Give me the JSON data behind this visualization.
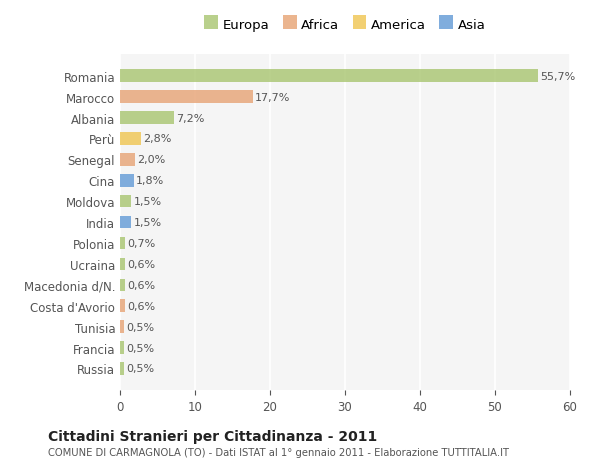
{
  "countries": [
    "Romania",
    "Marocco",
    "Albania",
    "Perù",
    "Senegal",
    "Cina",
    "Moldova",
    "India",
    "Polonia",
    "Ucraina",
    "Macedonia d/N.",
    "Costa d'Avorio",
    "Tunisia",
    "Francia",
    "Russia"
  ],
  "values": [
    55.7,
    17.7,
    7.2,
    2.8,
    2.0,
    1.8,
    1.5,
    1.5,
    0.7,
    0.6,
    0.6,
    0.6,
    0.5,
    0.5,
    0.5
  ],
  "labels": [
    "55,7%",
    "17,7%",
    "7,2%",
    "2,8%",
    "2,0%",
    "1,8%",
    "1,5%",
    "1,5%",
    "0,7%",
    "0,6%",
    "0,6%",
    "0,6%",
    "0,5%",
    "0,5%",
    "0,5%"
  ],
  "continents": [
    "Europa",
    "Africa",
    "Europa",
    "America",
    "Africa",
    "Asia",
    "Europa",
    "Asia",
    "Europa",
    "Europa",
    "Europa",
    "Africa",
    "Africa",
    "Europa",
    "Europa"
  ],
  "colors": {
    "Europa": "#adc878",
    "Africa": "#e8a87c",
    "America": "#f0c85a",
    "Asia": "#6a9fd8"
  },
  "legend_order": [
    "Europa",
    "Africa",
    "America",
    "Asia"
  ],
  "title": "Cittadini Stranieri per Cittadinanza - 2011",
  "subtitle": "COMUNE DI CARMAGNOLA (TO) - Dati ISTAT al 1° gennaio 2011 - Elaborazione TUTTITALIA.IT",
  "xlim": [
    0,
    60
  ],
  "xticks": [
    0,
    10,
    20,
    30,
    40,
    50,
    60
  ],
  "background_color": "#ffffff",
  "plot_bg_color": "#f5f5f5",
  "grid_color": "#ffffff",
  "bar_alpha": 0.85
}
